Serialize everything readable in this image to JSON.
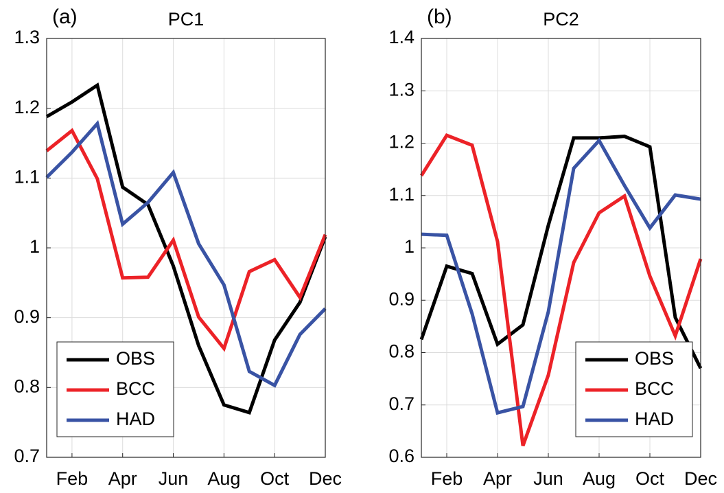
{
  "chart_data": [
    {
      "type": "line",
      "annotation": "(a)",
      "title": "PC1",
      "categories": [
        null,
        "Feb",
        null,
        "Apr",
        null,
        "Jun",
        null,
        "Aug",
        null,
        "Oct",
        null,
        "Dec"
      ],
      "series": [
        {
          "name": "OBS",
          "color": "#000000",
          "values": [
            1.188,
            1.209,
            1.233,
            1.087,
            1.062,
            0.974,
            0.86,
            0.775,
            0.764,
            0.868,
            0.922,
            1.016
          ]
        },
        {
          "name": "BCC",
          "color": "#ec2227",
          "values": [
            1.139,
            1.168,
            1.099,
            0.957,
            0.958,
            1.011,
            0.901,
            0.856,
            0.966,
            0.983,
            0.929,
            1.019
          ]
        },
        {
          "name": "HAD",
          "color": "#3953a4",
          "values": [
            1.101,
            1.137,
            1.178,
            1.034,
            1.065,
            1.108,
            1.006,
            0.947,
            0.823,
            0.803,
            0.876,
            0.913
          ]
        }
      ],
      "ylim": [
        0.7,
        1.3
      ],
      "yticks": [
        0.7,
        0.8,
        0.9,
        1,
        1.1,
        1.2,
        1.3
      ],
      "grid": true,
      "legend": "lower left"
    },
    {
      "type": "line",
      "annotation": "(b)",
      "title": "PC2",
      "categories": [
        null,
        "Feb",
        null,
        "Apr",
        null,
        "Jun",
        null,
        "Aug",
        null,
        "Oct",
        null,
        "Dec"
      ],
      "series": [
        {
          "name": "OBS",
          "color": "#000000",
          "values": [
            0.825,
            0.965,
            0.951,
            0.816,
            0.853,
            1.043,
            1.21,
            1.21,
            1.213,
            1.193,
            0.867,
            0.77
          ]
        },
        {
          "name": "BCC",
          "color": "#ec2227",
          "values": [
            1.138,
            1.215,
            1.196,
            1.012,
            0.622,
            0.757,
            0.972,
            1.067,
            1.099,
            0.946,
            0.832,
            0.979
          ]
        },
        {
          "name": "HAD",
          "color": "#3953a4",
          "values": [
            1.026,
            1.024,
            0.874,
            0.685,
            0.697,
            0.878,
            1.152,
            1.205,
            1.119,
            1.038,
            1.101,
            1.093
          ]
        }
      ],
      "ylim": [
        0.6,
        1.4
      ],
      "yticks": [
        0.6,
        0.7,
        0.8,
        0.9,
        1,
        1.1,
        1.2,
        1.3,
        1.4
      ],
      "grid": true,
      "legend": "lower right"
    }
  ]
}
